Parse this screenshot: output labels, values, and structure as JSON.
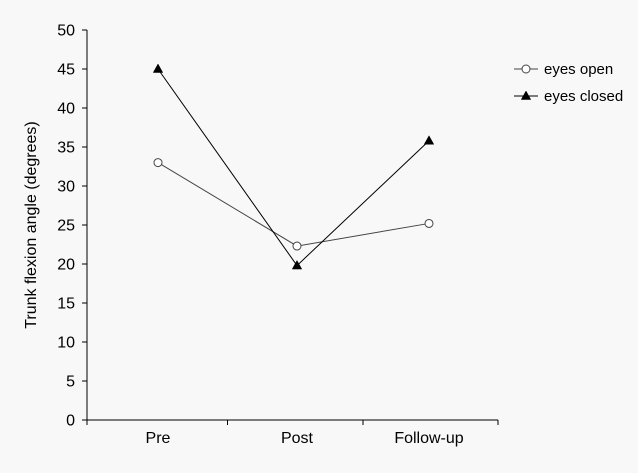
{
  "chart_data": {
    "type": "line",
    "title": "",
    "xlabel": "",
    "ylabel": "Trunk flexion angle (degrees)",
    "categories": [
      "Pre",
      "Post",
      "Follow-up"
    ],
    "ylim": [
      0,
      50
    ],
    "yticks": [
      0,
      5,
      10,
      15,
      20,
      25,
      30,
      35,
      40,
      45,
      50
    ],
    "grid": false,
    "legend_position": "top-right",
    "series": [
      {
        "name": "eyes open",
        "values": [
          33,
          22.3,
          25.2
        ],
        "marker": "open-circle",
        "color": "#444444"
      },
      {
        "name": "eyes closed",
        "values": [
          45,
          19.8,
          35.8
        ],
        "marker": "filled-triangle",
        "color": "#000000"
      }
    ]
  }
}
